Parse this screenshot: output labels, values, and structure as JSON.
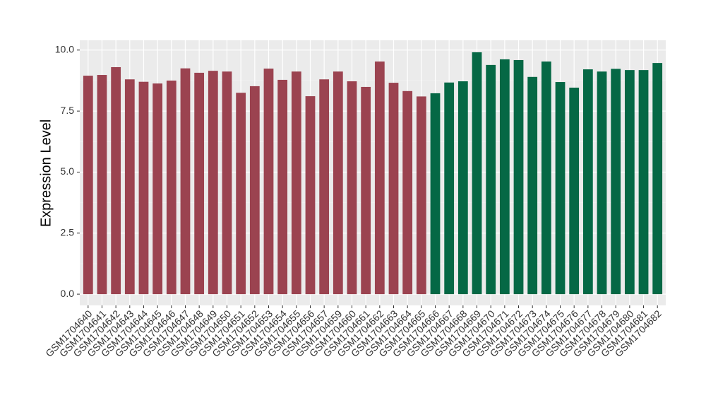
{
  "chart_data": {
    "type": "bar",
    "y_label": "Expression Level",
    "categories": [
      "GSM1704640",
      "GSM1704641",
      "GSM1704642",
      "GSM1704643",
      "GSM1704644",
      "GSM1704645",
      "GSM1704646",
      "GSM1704647",
      "GSM1704648",
      "GSM1704649",
      "GSM1704650",
      "GSM1704651",
      "GSM1704652",
      "GSM1704653",
      "GSM1704654",
      "GSM1704655",
      "GSM1704656",
      "GSM1704657",
      "GSM1704659",
      "GSM1704660",
      "GSM1704661",
      "GSM1704662",
      "GSM1704663",
      "GSM1704664",
      "GSM1704665",
      "GSM1704666",
      "GSM1704667",
      "GSM1704668",
      "GSM1704669",
      "GSM1704670",
      "GSM1704671",
      "GSM1704672",
      "GSM1704673",
      "GSM1704674",
      "GSM1704675",
      "GSM1704676",
      "GSM1704677",
      "GSM1704678",
      "GSM1704679",
      "GSM1704680",
      "GSM1704681",
      "GSM1704682"
    ],
    "values": [
      8.95,
      8.98,
      9.3,
      8.8,
      8.7,
      8.63,
      8.75,
      9.25,
      9.07,
      9.15,
      9.12,
      8.25,
      8.52,
      9.24,
      8.78,
      9.12,
      8.11,
      8.8,
      9.12,
      8.72,
      8.49,
      9.53,
      8.66,
      8.32,
      8.1,
      8.23,
      8.67,
      8.72,
      9.91,
      9.39,
      9.62,
      9.59,
      8.9,
      9.53,
      8.69,
      8.46,
      9.21,
      9.12,
      9.23,
      9.18,
      9.18,
      9.47
    ],
    "colors": [
      "#9b4350",
      "#9b4350",
      "#9b4350",
      "#9b4350",
      "#9b4350",
      "#9b4350",
      "#9b4350",
      "#9b4350",
      "#9b4350",
      "#9b4350",
      "#9b4350",
      "#9b4350",
      "#9b4350",
      "#9b4350",
      "#9b4350",
      "#9b4350",
      "#9b4350",
      "#9b4350",
      "#9b4350",
      "#9b4350",
      "#9b4350",
      "#9b4350",
      "#9b4350",
      "#9b4350",
      "#9b4350",
      "#056845",
      "#056845",
      "#056845",
      "#056845",
      "#056845",
      "#056845",
      "#056845",
      "#056845",
      "#056845",
      "#056845",
      "#056845",
      "#056845",
      "#056845",
      "#056845",
      "#056845",
      "#056845",
      "#056845"
    ],
    "ylim": [
      -0.46,
      10.4
    ],
    "yticks": [
      {
        "value": 0,
        "label": "0.0"
      },
      2.5,
      {
        "value": 5,
        "label": "5.0"
      },
      7.5,
      {
        "value": 10,
        "label": "10.0"
      }
    ],
    "grid": true
  }
}
